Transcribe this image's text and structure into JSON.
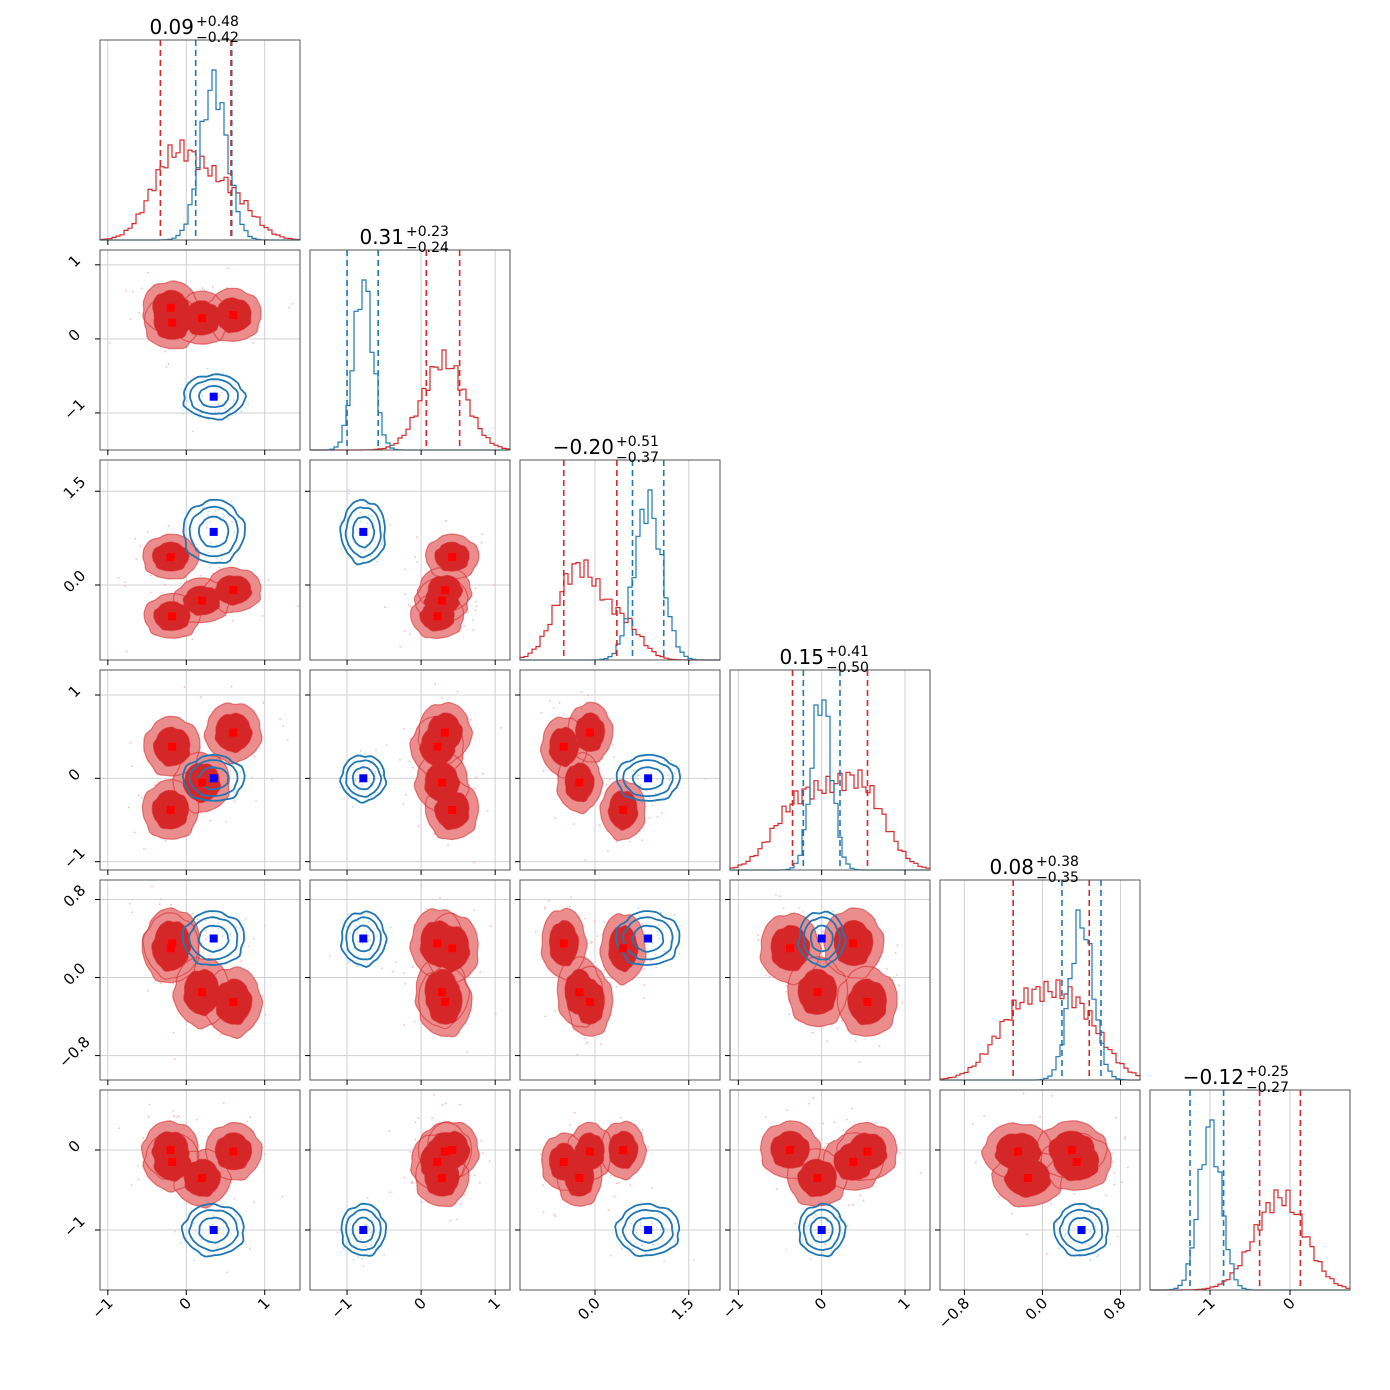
{
  "colors": {
    "red": "#d62728",
    "red_light": "#eb8c8d",
    "red_mid": "#e04e50",
    "blue": "#1f77b4",
    "marker_blue": "#0000ff",
    "marker_red": "#ff0000",
    "grid": "#d0d0d0"
  },
  "chart_data": {
    "type": "corner",
    "n_params": 6,
    "grid": true,
    "series": [
      {
        "color": "blue",
        "centers": [
          0.35,
          -0.78,
          0.85,
          0.0,
          0.4,
          -1.0
        ],
        "sigmas": [
          0.17,
          0.13,
          0.22,
          0.12,
          0.12,
          0.14
        ],
        "q16": [
          0.12,
          -1.0,
          0.6,
          -0.22,
          0.2,
          -1.25
        ],
        "q84": [
          0.58,
          -0.58,
          1.1,
          0.22,
          0.6,
          -0.83
        ]
      },
      {
        "color": "red",
        "markers": [
          [
            -0.2,
            0.42,
            0.45,
            -0.38,
            0.3,
            0.0
          ],
          [
            -0.18,
            0.22,
            -0.5,
            0.38,
            0.35,
            -0.15
          ],
          [
            0.2,
            0.28,
            -0.25,
            -0.05,
            -0.15,
            -0.35
          ],
          [
            0.6,
            0.32,
            -0.08,
            0.55,
            -0.25,
            -0.02
          ]
        ],
        "q16": [
          -0.33,
          0.07,
          -0.5,
          -0.35,
          -0.3,
          -0.38
        ],
        "q84": [
          0.57,
          0.52,
          0.35,
          0.55,
          0.48,
          0.13
        ]
      }
    ],
    "titles": [
      {
        "value": "0.09",
        "plus": "+0.48",
        "minus": "−0.42"
      },
      {
        "value": "0.31",
        "plus": "+0.23",
        "minus": "−0.24"
      },
      {
        "value": "−0.20",
        "plus": "+0.51",
        "minus": "−0.37"
      },
      {
        "value": "0.15",
        "plus": "+0.41",
        "minus": "−0.50"
      },
      {
        "value": "0.08",
        "plus": "+0.38",
        "minus": "−0.35"
      },
      {
        "value": "−0.12",
        "plus": "+0.25",
        "minus": "−0.27"
      }
    ],
    "axis_ranges": [
      [
        -1.1,
        1.45
      ],
      [
        -1.5,
        1.2
      ],
      [
        -1.2,
        2.0
      ],
      [
        -1.1,
        1.3
      ],
      [
        -1.05,
        1.0
      ],
      [
        -1.75,
        0.75
      ]
    ],
    "x_ticks": [
      {
        "values": [
          -1,
          0,
          1
        ],
        "labels": [
          "−1",
          "0",
          "1"
        ]
      },
      {
        "values": [
          -1,
          0,
          1
        ],
        "labels": [
          "−1",
          "0",
          "1"
        ]
      },
      {
        "values": [
          0.0,
          1.5
        ],
        "labels": [
          "0.0",
          "1.5"
        ]
      },
      {
        "values": [
          -1,
          0,
          1
        ],
        "labels": [
          "−1",
          "0",
          "1"
        ]
      },
      {
        "values": [
          -0.8,
          0.0,
          0.8
        ],
        "labels": [
          "−0.8",
          "0.0",
          "0.8"
        ]
      },
      {
        "values": [
          -1,
          0
        ],
        "labels": [
          "−1",
          "0"
        ]
      }
    ],
    "y_ticks": [
      null,
      {
        "values": [
          1,
          0,
          -1
        ],
        "labels": [
          "1",
          "0",
          "−1"
        ]
      },
      {
        "values": [
          1.5,
          0.0
        ],
        "labels": [
          "1.5",
          "0.0"
        ]
      },
      {
        "values": [
          1,
          0,
          -1
        ],
        "labels": [
          "1",
          "0",
          "−1"
        ]
      },
      {
        "values": [
          0.8,
          0.0,
          -0.8
        ],
        "labels": [
          "0.8",
          "0.0",
          "−0.8"
        ]
      },
      {
        "values": [
          0,
          -1
        ],
        "labels": [
          "0",
          "−1"
        ]
      }
    ]
  }
}
